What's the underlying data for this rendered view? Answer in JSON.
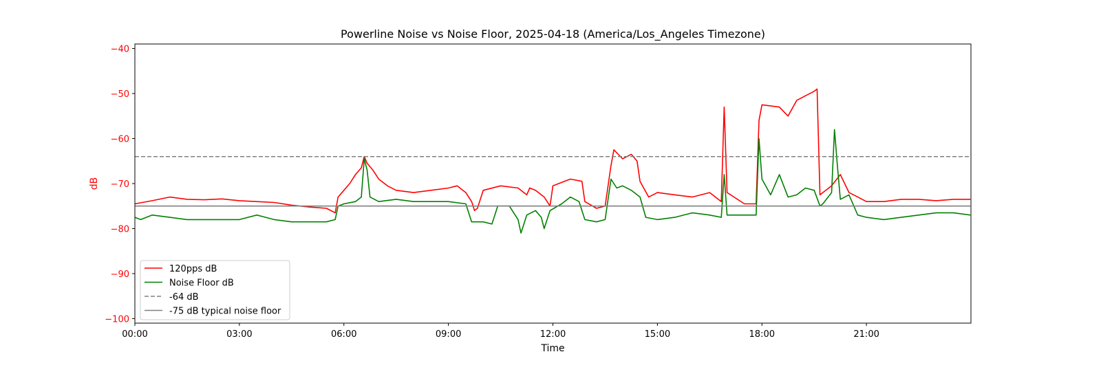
{
  "chart_data": {
    "type": "line",
    "title": "Powerline Noise vs Noise Floor, 2025-04-18 (America/Los_Angeles Timezone)",
    "xlabel": "Time",
    "ylabel": "dB",
    "x_unit": "hours",
    "xlim": [
      "00:00",
      "24:00"
    ],
    "ylim": [
      -101,
      -39
    ],
    "x_tick_labels": [
      "00:00",
      "03:00",
      "06:00",
      "09:00",
      "12:00",
      "15:00",
      "18:00",
      "21:00"
    ],
    "y_ticks": [
      -40,
      -50,
      -60,
      -70,
      -80,
      -90,
      -100
    ],
    "y_tick_labels": [
      "−40",
      "−50",
      "−60",
      "−70",
      "−80",
      "−90",
      "−100"
    ],
    "grid": false,
    "legend_position": "lower-left",
    "colors": {
      "signal": "#ff0000",
      "noise_floor": "#008000",
      "reference": "#808080",
      "y_axis_label": "#ff0000"
    },
    "series": [
      {
        "name": "120pps dB",
        "color": "#ff0000",
        "style": "solid",
        "points": [
          [
            "00:00",
            -74.5
          ],
          [
            "00:30",
            -73.8
          ],
          [
            "01:00",
            -73.0
          ],
          [
            "01:30",
            -73.5
          ],
          [
            "02:00",
            -73.6
          ],
          [
            "02:30",
            -73.4
          ],
          [
            "03:00",
            -73.8
          ],
          [
            "03:30",
            -74.0
          ],
          [
            "04:00",
            -74.2
          ],
          [
            "04:30",
            -74.8
          ],
          [
            "05:00",
            -75.2
          ],
          [
            "05:30",
            -75.5
          ],
          [
            "05:45",
            -76.5
          ],
          [
            "05:50",
            -73.0
          ],
          [
            "06:00",
            -71.5
          ],
          [
            "06:10",
            -70.0
          ],
          [
            "06:20",
            -68.0
          ],
          [
            "06:30",
            -66.5
          ],
          [
            "06:35",
            -64.0
          ],
          [
            "06:40",
            -65.5
          ],
          [
            "06:50",
            -67.0
          ],
          [
            "07:00",
            -69.0
          ],
          [
            "07:15",
            -70.5
          ],
          [
            "07:30",
            -71.5
          ],
          [
            "08:00",
            -72.0
          ],
          [
            "08:30",
            -71.5
          ],
          [
            "09:00",
            -71.0
          ],
          [
            "09:15",
            -70.5
          ],
          [
            "09:30",
            -72.0
          ],
          [
            "09:40",
            -74.0
          ],
          [
            "09:45",
            -76.0
          ],
          [
            "09:50",
            -75.5
          ],
          [
            "10:00",
            -71.5
          ],
          [
            "10:30",
            -70.5
          ],
          [
            "11:00",
            -71.0
          ],
          [
            "11:15",
            -72.5
          ],
          [
            "11:20",
            -71.0
          ],
          [
            "11:30",
            -71.5
          ],
          [
            "11:45",
            -73.0
          ],
          [
            "11:55",
            -75.0
          ],
          [
            "12:00",
            -70.5
          ],
          [
            "12:30",
            -69.0
          ],
          [
            "12:50",
            -69.5
          ],
          [
            "12:55",
            -74.0
          ],
          [
            "13:15",
            -75.5
          ],
          [
            "13:30",
            -75.0
          ],
          [
            "13:40",
            -66.0
          ],
          [
            "13:45",
            -62.5
          ],
          [
            "14:00",
            -64.5
          ],
          [
            "14:15",
            -63.5
          ],
          [
            "14:25",
            -65.0
          ],
          [
            "14:30",
            -69.5
          ],
          [
            "14:45",
            -73.0
          ],
          [
            "15:00",
            -72.0
          ],
          [
            "15:30",
            -72.5
          ],
          [
            "16:00",
            -73.0
          ],
          [
            "16:30",
            -72.0
          ],
          [
            "16:50",
            -74.0
          ],
          [
            "16:55",
            -53.0
          ],
          [
            "17:00",
            -72.0
          ],
          [
            "17:30",
            -74.5
          ],
          [
            "17:50",
            -74.5
          ],
          [
            "17:55",
            -56.0
          ],
          [
            "18:00",
            -52.5
          ],
          [
            "18:30",
            -53.0
          ],
          [
            "18:45",
            -55.0
          ],
          [
            "19:00",
            -51.5
          ],
          [
            "19:15",
            -50.5
          ],
          [
            "19:30",
            -49.5
          ],
          [
            "19:35",
            -49.0
          ],
          [
            "19:40",
            -72.5
          ],
          [
            "19:45",
            -72.0
          ],
          [
            "20:00",
            -70.5
          ],
          [
            "20:15",
            -68.0
          ],
          [
            "20:30",
            -72.0
          ],
          [
            "20:45",
            -73.0
          ],
          [
            "21:00",
            -74.0
          ],
          [
            "21:30",
            -74.0
          ],
          [
            "22:00",
            -73.5
          ],
          [
            "22:30",
            -73.5
          ],
          [
            "23:00",
            -73.8
          ],
          [
            "23:30",
            -73.5
          ],
          [
            "23:59",
            -73.5
          ]
        ]
      },
      {
        "name": "Noise Floor dB",
        "color": "#008000",
        "style": "solid",
        "points": [
          [
            "00:00",
            -77.5
          ],
          [
            "00:10",
            -78.0
          ],
          [
            "00:30",
            -77.0
          ],
          [
            "01:00",
            -77.5
          ],
          [
            "01:30",
            -78.0
          ],
          [
            "02:00",
            -78.0
          ],
          [
            "02:30",
            -78.0
          ],
          [
            "03:00",
            -78.0
          ],
          [
            "03:30",
            -77.0
          ],
          [
            "04:00",
            -78.0
          ],
          [
            "04:30",
            -78.5
          ],
          [
            "05:00",
            -78.5
          ],
          [
            "05:30",
            -78.5
          ],
          [
            "05:45",
            -78.0
          ],
          [
            "05:50",
            -75.0
          ],
          [
            "06:00",
            -74.5
          ],
          [
            "06:20",
            -74.0
          ],
          [
            "06:30",
            -73.0
          ],
          [
            "06:35",
            -64.5
          ],
          [
            "06:40",
            -67.0
          ],
          [
            "06:45",
            -73.0
          ],
          [
            "07:00",
            -74.0
          ],
          [
            "07:30",
            -73.5
          ],
          [
            "08:00",
            -74.0
          ],
          [
            "08:30",
            -74.0
          ],
          [
            "09:00",
            -74.0
          ],
          [
            "09:30",
            -74.5
          ],
          [
            "09:40",
            -78.5
          ],
          [
            "10:00",
            -78.5
          ],
          [
            "10:15",
            -79.0
          ],
          [
            "10:25",
            -75.0
          ],
          [
            "10:45",
            -75.0
          ],
          [
            "11:00",
            -78.0
          ],
          [
            "11:05",
            -81.0
          ],
          [
            "11:15",
            -77.0
          ],
          [
            "11:30",
            -76.0
          ],
          [
            "11:40",
            -77.5
          ],
          [
            "11:45",
            -80.0
          ],
          [
            "11:55",
            -76.0
          ],
          [
            "12:15",
            -74.5
          ],
          [
            "12:30",
            -73.0
          ],
          [
            "12:45",
            -74.0
          ],
          [
            "12:55",
            -78.0
          ],
          [
            "13:15",
            -78.5
          ],
          [
            "13:30",
            -78.0
          ],
          [
            "13:40",
            -69.0
          ],
          [
            "13:50",
            -71.0
          ],
          [
            "14:00",
            -70.5
          ],
          [
            "14:15",
            -71.5
          ],
          [
            "14:30",
            -73.0
          ],
          [
            "14:40",
            -77.5
          ],
          [
            "15:00",
            -78.0
          ],
          [
            "15:30",
            -77.5
          ],
          [
            "16:00",
            -76.5
          ],
          [
            "16:30",
            -77.0
          ],
          [
            "16:50",
            -77.5
          ],
          [
            "16:55",
            -68.0
          ],
          [
            "17:00",
            -77.0
          ],
          [
            "17:30",
            -77.0
          ],
          [
            "17:50",
            -77.0
          ],
          [
            "17:55",
            -60.0
          ],
          [
            "18:00",
            -69.0
          ],
          [
            "18:15",
            -72.5
          ],
          [
            "18:30",
            -68.0
          ],
          [
            "18:45",
            -73.0
          ],
          [
            "19:00",
            -72.5
          ],
          [
            "19:15",
            -71.0
          ],
          [
            "19:30",
            -71.5
          ],
          [
            "19:40",
            -75.0
          ],
          [
            "19:45",
            -74.5
          ],
          [
            "20:00",
            -72.0
          ],
          [
            "20:05",
            -58.0
          ],
          [
            "20:10",
            -66.0
          ],
          [
            "20:15",
            -73.5
          ],
          [
            "20:30",
            -72.5
          ],
          [
            "20:45",
            -77.0
          ],
          [
            "21:00",
            -77.5
          ],
          [
            "21:30",
            -78.0
          ],
          [
            "22:00",
            -77.5
          ],
          [
            "22:30",
            -77.0
          ],
          [
            "23:00",
            -76.5
          ],
          [
            "23:30",
            -76.5
          ],
          [
            "23:59",
            -77.0
          ]
        ]
      },
      {
        "name": "-64 dB",
        "color": "#808080",
        "style": "dashed",
        "points": [
          [
            "00:00",
            -64
          ],
          [
            "23:59",
            -64
          ]
        ]
      },
      {
        "name": "-75 dB typical noise floor",
        "color": "#808080",
        "style": "solid",
        "points": [
          [
            "00:00",
            -75
          ],
          [
            "23:59",
            -75
          ]
        ]
      }
    ]
  }
}
